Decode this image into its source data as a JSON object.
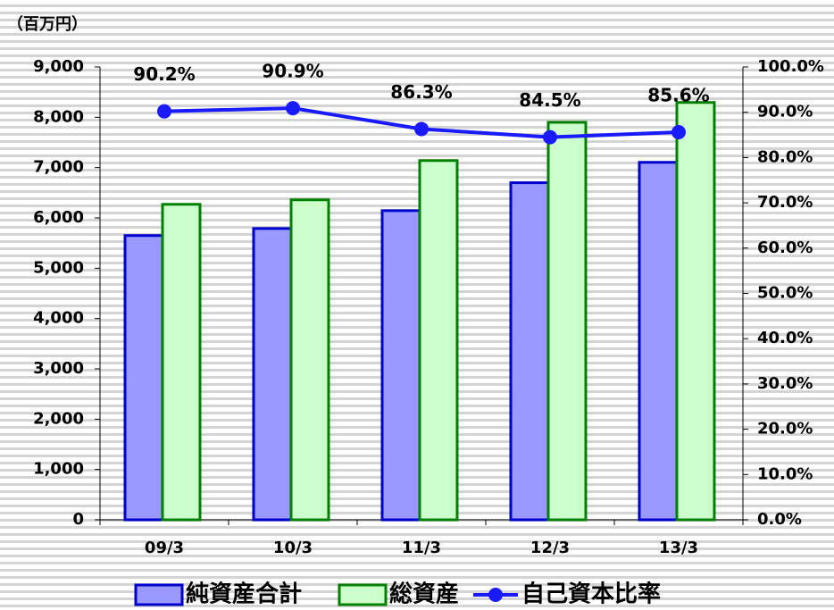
{
  "chart_data": {
    "type": "bar",
    "unit_label": "（百万円）",
    "categories": [
      "09/3",
      "10/3",
      "11/3",
      "12/3",
      "13/3"
    ],
    "series": [
      {
        "name": "純資産合計",
        "type": "bar",
        "color": "#9999ff",
        "stroke": "#0000cc",
        "values": [
          5650,
          5790,
          6145,
          6700,
          7105
        ]
      },
      {
        "name": "総資産",
        "type": "bar",
        "color": "#ccffcc",
        "stroke": "#008000",
        "values": [
          6270,
          6360,
          7140,
          7900,
          8295
        ]
      },
      {
        "name": "自己資本比率",
        "type": "line",
        "axis": "y2",
        "color": "#1a1aff",
        "values": [
          90.2,
          90.9,
          86.3,
          84.5,
          85.6
        ],
        "value_labels": [
          "90.2%",
          "90.9%",
          "86.3%",
          "84.5%",
          "85.6%"
        ]
      }
    ],
    "ylim": [
      0,
      9000
    ],
    "yticks": [
      0,
      {
        "value": 1000,
        "label": "1,000"
      },
      {
        "value": 2000,
        "label": "2,000"
      },
      {
        "value": 3000,
        "label": "3,000"
      },
      {
        "value": 4000,
        "label": "4,000"
      },
      {
        "value": 5000,
        "label": "5,000"
      },
      {
        "value": 6000,
        "label": "6,000"
      },
      {
        "value": 7000,
        "label": "7,000"
      },
      {
        "value": 8000,
        "label": "8,000"
      },
      {
        "value": 9000,
        "label": "9,000"
      }
    ],
    "y2lim": [
      0,
      100
    ],
    "y2ticks": [
      {
        "value": 0,
        "label": "0.0%"
      },
      {
        "value": 10,
        "label": "10.0%"
      },
      {
        "value": 20,
        "label": "20.0%"
      },
      {
        "value": 30,
        "label": "30.0%"
      },
      {
        "value": 40,
        "label": "40.0%"
      },
      {
        "value": 50,
        "label": "50.0%"
      },
      {
        "value": 60,
        "label": "60.0%"
      },
      {
        "value": 70,
        "label": "70.0%"
      },
      {
        "value": 80,
        "label": "80.0%"
      },
      {
        "value": 90,
        "label": "90.0%"
      },
      {
        "value": 100,
        "label": "100.0%"
      }
    ],
    "legend": "bottom"
  }
}
